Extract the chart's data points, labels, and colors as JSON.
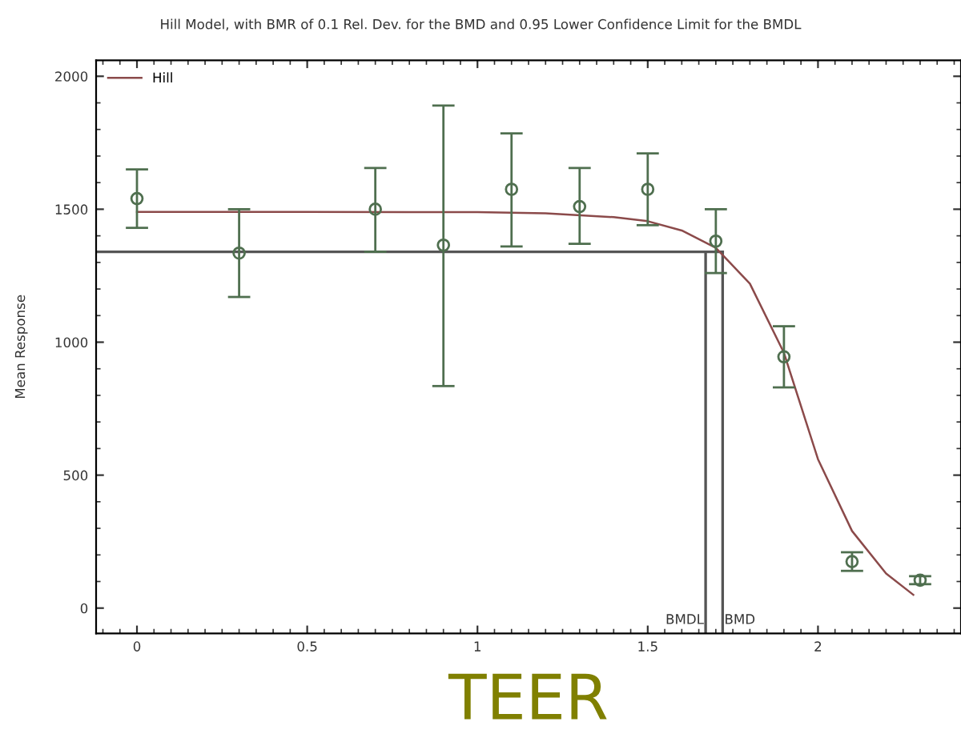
{
  "chart_data": {
    "type": "scatter",
    "title": "Hill Model, with BMR of 0.1 Rel. Dev. for the BMD and 0.95 Lower Confidence Limit for the BMDL",
    "xlabel": "TEER",
    "ylabel": "Mean Response",
    "xlim": [
      -0.12,
      2.42
    ],
    "ylim": [
      -95,
      2060
    ],
    "xticks": [
      0,
      0.5,
      1,
      1.5,
      2
    ],
    "yticks": [
      0,
      500,
      1000,
      1500,
      2000
    ],
    "grid": false,
    "legend": "top left",
    "marker": "circle",
    "series": [
      {
        "color": "#4f6f4f",
        "x": [
          0,
          0.3,
          0.7,
          0.9,
          1.1,
          1.3,
          1.5,
          1.7,
          1.9,
          2.1,
          2.3
        ],
        "values": [
          1540,
          1335,
          1500,
          1365,
          1575,
          1510,
          1575,
          1380,
          945,
          175,
          105
        ],
        "errors": [
          [
            1430,
            1650
          ],
          [
            1170,
            1500
          ],
          [
            1340,
            1655
          ],
          [
            835,
            1890
          ],
          [
            1360,
            1785
          ],
          [
            1370,
            1655
          ],
          [
            1440,
            1710
          ],
          [
            1260,
            1500
          ],
          [
            830,
            1060
          ],
          [
            140,
            210
          ],
          [
            90,
            120
          ]
        ]
      },
      {
        "type": "line",
        "name": "Hill",
        "color": "#8b4a4a",
        "line_style": "solid",
        "marker": "none",
        "x": [
          0,
          0.5,
          1.0,
          1.2,
          1.4,
          1.5,
          1.6,
          1.7,
          1.8,
          1.9,
          2.0,
          2.1,
          2.2,
          2.28
        ],
        "values": [
          1490,
          1490,
          1489,
          1485,
          1470,
          1455,
          1420,
          1355,
          1220,
          960,
          560,
          290,
          130,
          50
        ]
      }
    ],
    "ref_lines": [
      {
        "axis": "y",
        "value": 1340,
        "color": "#555555"
      },
      {
        "axis": "x",
        "value": 1.67,
        "label": "BMDL",
        "color": "#555555"
      },
      {
        "axis": "x",
        "value": 1.72,
        "label": "BMD",
        "color": "#555555"
      }
    ]
  }
}
